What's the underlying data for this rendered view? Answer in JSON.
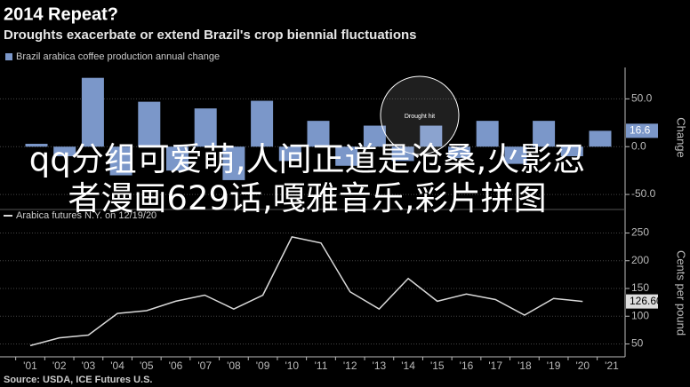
{
  "header": {
    "title": "2014 Repeat?",
    "subtitle": "Droughts exacerbate or extend Brazil's crop biennial fluctuations",
    "source": "Source: USDA, ICE Futures U.S."
  },
  "overlay_text": "qq分组可爱萌,人间正道是沧桑,火影忍者漫画629话,嘎雅音乐,彩片拼图",
  "chart_data": [
    {
      "type": "bar",
      "series": [
        {
          "name": "Brazil arabica coffee production annual change",
          "color": "#7b97c9",
          "values": [
            3,
            -10,
            72,
            -30,
            47,
            -25,
            40,
            -35,
            48,
            -15,
            27,
            -20,
            22,
            -15,
            22,
            -12,
            27,
            -18,
            27,
            -10,
            16.6
          ],
          "value_labels": [
            null,
            null,
            null,
            null,
            null,
            null,
            null,
            null,
            null,
            null,
            null,
            null,
            null,
            null,
            null,
            null,
            null,
            null,
            null,
            null,
            "16.6"
          ]
        }
      ],
      "categories": [
        null,
        null,
        null,
        null,
        null,
        null,
        null,
        null,
        null,
        null,
        null,
        null,
        null,
        null,
        null,
        null,
        null,
        null,
        null,
        null,
        null
      ],
      "ylim": [
        -62,
        81
      ],
      "yticks": [
        {
          "value": 50,
          "label": "50.0"
        },
        {
          "value": 0,
          "label": "0.0"
        },
        {
          "value": -50,
          "label": "-50.0"
        }
      ],
      "y_label": "Change",
      "grid": true,
      "annotation": "Drought hit"
    },
    {
      "type": "line",
      "series": [
        {
          "name": "Arabica futures N.Y. on 12/19/20",
          "color": "#d9d9d9",
          "values": [
            47,
            61,
            66,
            105,
            110,
            127,
            138,
            113,
            138,
            243,
            232,
            144,
            113,
            168,
            127,
            140,
            130,
            102,
            132,
            126.6,
            null
          ],
          "value_labels": [
            null,
            null,
            null,
            null,
            null,
            null,
            null,
            null,
            null,
            null,
            null,
            null,
            null,
            null,
            null,
            null,
            null,
            null,
            null,
            "126.60",
            null
          ]
        }
      ],
      "categories": [
        "'01",
        "'02",
        "'03",
        "'04",
        "'05",
        "'06",
        "'07",
        "'08",
        "'09",
        "'10",
        "'11",
        "'12",
        "'13",
        "'14",
        "'15",
        "'16",
        "'17",
        "'18",
        "'19",
        "'20",
        "'21"
      ],
      "ylim": [
        30,
        270
      ],
      "yticks": [
        250,
        200,
        150,
        100,
        50
      ],
      "y_label": "Cents per pound",
      "grid": true
    }
  ]
}
